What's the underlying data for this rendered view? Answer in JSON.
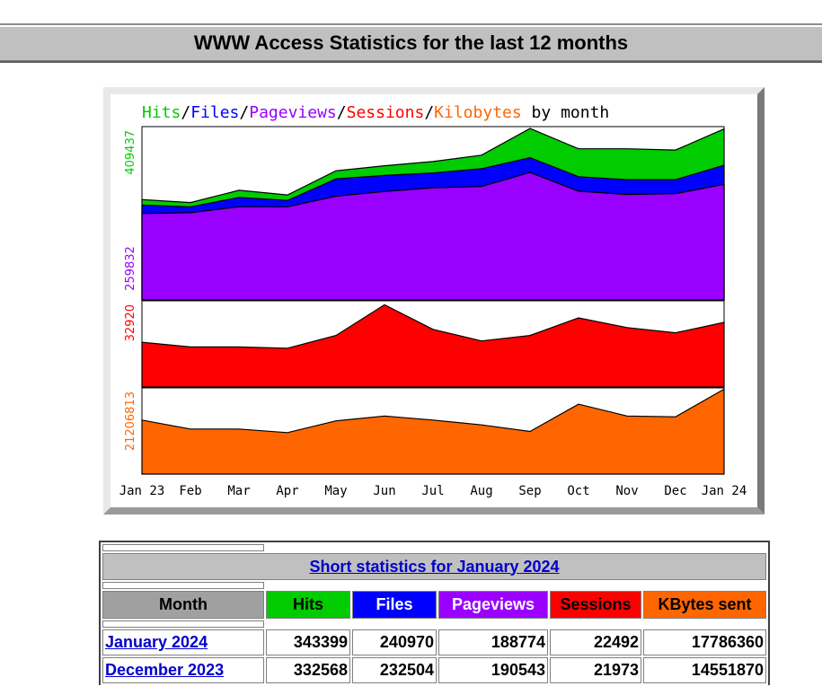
{
  "header": {
    "title": "WWW Access Statistics for the last 12 months"
  },
  "chart_data": {
    "type": "area",
    "title_parts": [
      {
        "text": "Hits",
        "color": "#00cc00"
      },
      {
        "text": "/",
        "color": "#000000"
      },
      {
        "text": "Files",
        "color": "#0000ff"
      },
      {
        "text": "/",
        "color": "#000000"
      },
      {
        "text": "Pageviews",
        "color": "#9900ff"
      },
      {
        "text": "/",
        "color": "#000000"
      },
      {
        "text": "Sessions",
        "color": "#ff0000"
      },
      {
        "text": "/",
        "color": "#000000"
      },
      {
        "text": "Kilobytes",
        "color": "#ff6600"
      },
      {
        "text": " by month",
        "color": "#000000"
      }
    ],
    "categories": [
      "Jan 23",
      "Feb",
      "Mar",
      "Apr",
      "May",
      "Jun",
      "Jul",
      "Aug",
      "Sep",
      "Oct",
      "Nov",
      "Dec",
      "Jan 24"
    ],
    "panels": [
      {
        "axis_label": "409437",
        "axis_label_color": "#00cc00",
        "second_axis_label": "259832",
        "second_axis_label_color": "#9900ff",
        "ymax": 409437,
        "series": [
          {
            "name": "Hits",
            "color": "#00cc00",
            "values": [
              237000,
              230000,
              259000,
              248000,
              305000,
              317000,
              327000,
              342000,
              405000,
              357000,
              357000,
              354000,
              404000
            ]
          },
          {
            "name": "Files",
            "color": "#0000ff",
            "values": [
              224000,
              220000,
              242000,
              235000,
              286000,
              294000,
              300000,
              310000,
              336000,
              291000,
              284000,
              284000,
              318000
            ]
          },
          {
            "name": "Pageviews",
            "color": "#9900ff",
            "values": [
              204000,
              206000,
              220000,
              220000,
              245000,
              256000,
              265000,
              268000,
              301000,
              257000,
              249000,
              251000,
              273000
            ]
          }
        ]
      },
      {
        "axis_label": "32920",
        "axis_label_color": "#ff0000",
        "ymax": 32920,
        "series": [
          {
            "name": "Sessions",
            "color": "#ff0000",
            "values": [
              17100,
              15300,
              15300,
              14800,
              19700,
              31400,
              22000,
              17600,
              19700,
              26400,
              22700,
              20700,
              24700
            ]
          }
        ]
      },
      {
        "axis_label": "21206813",
        "axis_label_color": "#ff6600",
        "ymax": 21206813,
        "series": [
          {
            "name": "Kilobytes",
            "color": "#ff6600",
            "values": [
              13300000,
              11100000,
              11100000,
              10200000,
              13100000,
              14300000,
              13300000,
              12100000,
              10500000,
              17200000,
              14300000,
              14100000,
              20900000
            ]
          }
        ]
      }
    ]
  },
  "table": {
    "title": "Short statistics for January 2024",
    "headers": [
      "Month",
      "Hits",
      "Files",
      "Pageviews",
      "Sessions",
      "KBytes sent"
    ],
    "rows": [
      {
        "month": "January 2024",
        "hits": "343399",
        "files": "240970",
        "pageviews": "188774",
        "sessions": "22492",
        "kbytes": "17786360"
      },
      {
        "month": "December 2023",
        "hits": "332568",
        "files": "232504",
        "pageviews": "190543",
        "sessions": "21973",
        "kbytes": "14551870"
      }
    ]
  }
}
